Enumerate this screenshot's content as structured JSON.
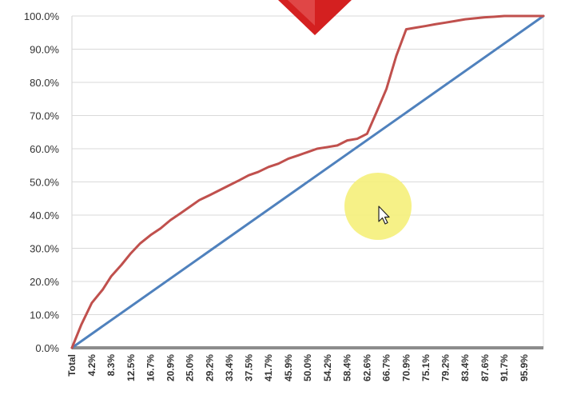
{
  "chart_data": {
    "type": "line",
    "title": "",
    "xlabel": "",
    "ylabel": "",
    "ylim": [
      0,
      100
    ],
    "grid": true,
    "y_ticks": [
      "0.0%",
      "10.0%",
      "20.0%",
      "30.0%",
      "40.0%",
      "50.0%",
      "60.0%",
      "70.0%",
      "80.0%",
      "90.0%",
      "100.0%"
    ],
    "categories": [
      "Total",
      "4.2%",
      "8.3%",
      "12.5%",
      "16.7%",
      "20.9%",
      "25.0%",
      "29.2%",
      "33.4%",
      "37.5%",
      "41.7%",
      "45.9%",
      "50.0%",
      "54.2%",
      "58.4%",
      "62.6%",
      "66.7%",
      "70.9%",
      "75.1%",
      "79.2%",
      "83.4%",
      "87.6%",
      "91.7%",
      "95.9%"
    ],
    "category_x": [
      0,
      4.2,
      8.3,
      12.5,
      16.7,
      20.9,
      25.0,
      29.2,
      33.4,
      37.5,
      41.7,
      45.9,
      50.0,
      54.2,
      58.4,
      62.6,
      66.7,
      70.9,
      75.1,
      79.2,
      83.4,
      87.6,
      91.7,
      95.9
    ],
    "series": [
      {
        "color": "#4f81bd",
        "x": [
          0,
          100
        ],
        "values": [
          0,
          100
        ]
      },
      {
        "color": "#c0504d",
        "x": [
          0,
          2,
          4.2,
          6.5,
          8.3,
          10.5,
          12.5,
          14.5,
          16.7,
          18.8,
          20.9,
          23,
          25.0,
          27,
          29.2,
          31.3,
          33.4,
          35.5,
          37.5,
          39.5,
          41.7,
          43.8,
          45.9,
          48,
          50.0,
          52,
          54.2,
          56.3,
          58.4,
          60.5,
          62.6,
          64.6,
          66.7,
          68.8,
          70.9,
          73,
          75.1,
          77,
          79.2,
          81.3,
          83.4,
          85.5,
          87.6,
          89.7,
          91.7,
          93.8,
          95.9,
          98,
          100
        ],
        "values": [
          0,
          7,
          13.5,
          17.5,
          21.5,
          25,
          28.5,
          31.5,
          34,
          36,
          38.5,
          40.5,
          42.5,
          44.5,
          46,
          47.5,
          49,
          50.5,
          52,
          53,
          54.5,
          55.5,
          57,
          58,
          59,
          60,
          60.5,
          61,
          62.5,
          63,
          64.5,
          71,
          78,
          88,
          96,
          96.5,
          97,
          97.5,
          98,
          98.5,
          99,
          99.3,
          99.6,
          99.8,
          100,
          100,
          100,
          100,
          100
        ]
      }
    ]
  },
  "overlay": {
    "marker_color": "#d42020",
    "highlight_color": "#f5f07a",
    "cursor_icon": "mouse-pointer-icon"
  }
}
